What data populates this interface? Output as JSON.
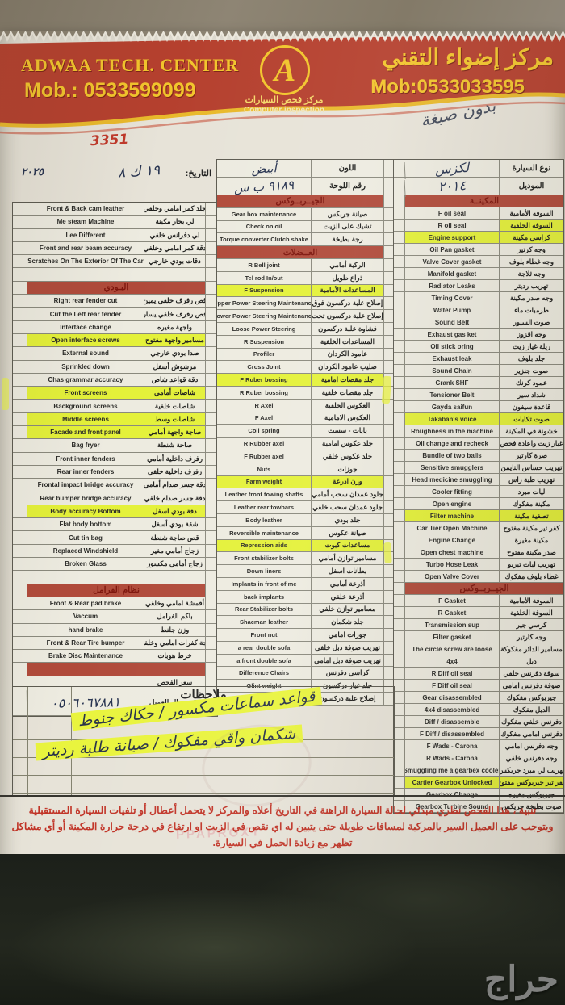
{
  "photo": {
    "watermark": "حراج"
  },
  "header": {
    "center_name_en": "ADWAA TECH. CENTER",
    "mob_left": "Mob.: 0533599099",
    "logo_letter": "A",
    "logo_sub_ar": "مركز فحص السيارات",
    "logo_sub_en": "Computer inspection",
    "center_name_ar": "مركز إضواء التقني",
    "mob_right": "Mob:0533033595",
    "serial_hand": "3351",
    "note_hand": "بدون صبغة"
  },
  "info": {
    "date_label": "التاريخ:",
    "date_hand": "١٩ ك ٨",
    "year_hand": "٢٠٢٥"
  },
  "stamp_bleed": "PPAPROXY",
  "columns": {
    "left": [
      {
        "en": "Front & Back cam leather",
        "ar": "جلد كمر امامي وخلفي"
      },
      {
        "en": "Me steam Machine",
        "ar": "لي بخار مكينة"
      },
      {
        "en": "Lee Different",
        "ar": "لي دفرانس خلفي"
      },
      {
        "en": "Front and rear beam accuracy",
        "ar": "دقة كمر امامي وخلفي"
      },
      {
        "en": "Scratches On The Exterior Of The Car",
        "ar": "دقات بودي خارجي"
      },
      {
        "type": "empty"
      },
      {
        "type": "section",
        "ar": "البـودي"
      },
      {
        "en": "Right rear fender cut",
        "ar": "قص رفرف خلفي يمين"
      },
      {
        "en": "Cut the Left rear fender",
        "ar": "قص رفرف خلفي يسار"
      },
      {
        "en": "Interface change",
        "ar": "واجهة مغيره"
      },
      {
        "en": "Open interface screws",
        "ar": "مسامير واجهة مفتوح",
        "hl": true
      },
      {
        "en": "External sound",
        "ar": "صدا بودي خارجي"
      },
      {
        "en": "Sprinkled down",
        "ar": "مرشوش أسفل"
      },
      {
        "en": "Chas grammar accuracy",
        "ar": "دقة قواعد شاص"
      },
      {
        "en": "Front screens",
        "ar": "شاصات أمامي",
        "hl": true
      },
      {
        "en": "Background screens",
        "ar": "شاصات خلفية"
      },
      {
        "en": "Middle screens",
        "ar": "شاصات وسط",
        "hl": true
      },
      {
        "en": "Facade and front panel",
        "ar": "صاجة واجهة أمامي",
        "hl": true
      },
      {
        "en": "Bag fryer",
        "ar": "صاجة شنطة"
      },
      {
        "en": "Front inner fenders",
        "ar": "رفرف داخلية أمامي"
      },
      {
        "en": "Rear inner fenders",
        "ar": "رفرف داخلية خلفي"
      },
      {
        "en": "Frontal impact bridge accuracy",
        "ar": "دقة جسر صدام أمامي"
      },
      {
        "en": "Rear bumper bridge accuracy",
        "ar": "دقة جسر صدام خلفي"
      },
      {
        "en": "Body accuracy Bottom",
        "ar": "دقة بودي اسفل",
        "hl": true
      },
      {
        "en": "Flat body bottom",
        "ar": "شقة بودي أسفل"
      },
      {
        "en": "Cut tin bag",
        "ar": "قص صاجة شنطة"
      },
      {
        "en": "Replaced Windshield",
        "ar": "زجاج أمامي مغير"
      },
      {
        "en": "Broken Glass",
        "ar": "زجاج أمامي مكسور"
      },
      {
        "type": "empty"
      },
      {
        "type": "section",
        "ar": "نظام الفرامل"
      },
      {
        "en": "Front & Rear pad brake",
        "ar": "أقمشة امامي وخلفي"
      },
      {
        "en": "Vaccum",
        "ar": "باكم الفرامل"
      },
      {
        "en": "hand brake",
        "ar": "وزن جلنط"
      },
      {
        "en": "Front & Rear Tire bumper",
        "ar": "رجة كفرات امامي وخلفي"
      },
      {
        "en": "Brake Disc Maintenance",
        "ar": "خرط هوبات"
      },
      {
        "type": "bar"
      },
      {
        "type": "field",
        "ar": "سعر الفحص"
      },
      {
        "type": "field2",
        "ar": "رقم جوال العميل",
        "hand": "٠٥٠٦٠٦٧٨٨١"
      }
    ],
    "middle": [
      {
        "type": "head",
        "ar": "اللون",
        "hand": "أبيض"
      },
      {
        "type": "head",
        "ar": "رقم اللوحة",
        "hand": "٩١٨٩ ب س"
      },
      {
        "type": "section",
        "ar": "الجيــربــوكس"
      },
      {
        "en": "Gear box maintenance",
        "ar": "صيانة جربكس"
      },
      {
        "en": "Check on oil",
        "ar": "تشيك على الزيت"
      },
      {
        "en": "Torque converter Clutch shake",
        "ar": "رجة بطيخة"
      },
      {
        "type": "section",
        "ar": "العــضلات"
      },
      {
        "en": "R Bell joint",
        "ar": "الركبة أمامي"
      },
      {
        "en": "Tel rod In/out",
        "ar": "ذراع طويل"
      },
      {
        "en": "F Suspension",
        "ar": "المساعدات الأمامية",
        "hl": true
      },
      {
        "en": "Upper Power Steering Maintenance",
        "ar": "إصلاح علبة دركسون فوق"
      },
      {
        "en": "Lower Power Steering Maintenance",
        "ar": "إصلاح علبة دركسون تحت"
      },
      {
        "en": "Loose Power Steering",
        "ar": "فشاوة علبة دركسون"
      },
      {
        "en": "R Suspension",
        "ar": "المساعدات الخلفية"
      },
      {
        "en": "Profiler",
        "ar": "عامود الكردان"
      },
      {
        "en": "Cross Joint",
        "ar": "صليب عامود الكردان"
      },
      {
        "en": "F Ruber bossing",
        "ar": "جلد مقصات امامية",
        "hl": true
      },
      {
        "en": "R Ruber bossing",
        "ar": "جلد مقصات خلفية"
      },
      {
        "en": "R Axel",
        "ar": "العكوس الخلفية"
      },
      {
        "en": "F Axel",
        "ar": "العكوس الامامية"
      },
      {
        "en": "Coil spring",
        "ar": "يايات - سست"
      },
      {
        "en": "R Rubber axel",
        "ar": "جلد عكوس امامية"
      },
      {
        "en": "F Rubber axel",
        "ar": "جلد عكوس خلفي"
      },
      {
        "en": "Nuts",
        "ar": "جوزات"
      },
      {
        "en": "Farm weight",
        "ar": "وزن اذرعة",
        "hl": true
      },
      {
        "en": "Leather front towing shafts",
        "ar": "جلود عمدان سحب أمامي"
      },
      {
        "en": "Leather rear towbars",
        "ar": "جلود عمدان سحب خلفي"
      },
      {
        "en": "Body leather",
        "ar": "جلد بودي"
      },
      {
        "en": "Reversible maintenance",
        "ar": "صيانة عكوس"
      },
      {
        "en": "Repression aids",
        "ar": "مساعدات كبوت",
        "hl": true
      },
      {
        "en": "Front stabilizer bolts",
        "ar": "مسامير توازن أمامي"
      },
      {
        "en": "Down liners",
        "ar": "بطانات اسفل"
      },
      {
        "en": "Implants in front of me",
        "ar": "أذرعة أمامي"
      },
      {
        "en": "back implants",
        "ar": "أذرعة خلفي"
      },
      {
        "en": "Rear Stabilizer bolts",
        "ar": "مسامير توازن خلفي"
      },
      {
        "en": "Shacman leather",
        "ar": "جلد شكمان"
      },
      {
        "en": "Front nut",
        "ar": "جوزات امامي"
      },
      {
        "en": "a rear double sofa",
        "ar": "تهريب صوفة دبل خلفي"
      },
      {
        "en": "a front double sofa",
        "ar": "تهريب صوفة دبل امامي"
      },
      {
        "en": "Difference Chairs",
        "ar": "كراسي دفرنس"
      },
      {
        "en": "Glint weight",
        "ar": "جلد غبار دركسون"
      },
      {
        "en": "Steering wheel repair",
        "ar": "إصلاح علبة دركسون"
      }
    ],
    "right": [
      {
        "type": "head",
        "ar": "نوع السيارة",
        "hand": "لكزس"
      },
      {
        "type": "head",
        "ar": "الموديل",
        "hand": "٢٠١٤"
      },
      {
        "type": "section",
        "ar": "المكينــة"
      },
      {
        "en": "F oil seal",
        "ar": "السوفه الأمامية"
      },
      {
        "en": "R oil seal",
        "ar": "السوفه الخلفية",
        "hl_ar": true
      },
      {
        "en": "Engine support",
        "ar": "كراسي مكينة",
        "hl": true
      },
      {
        "en": "Oil Pan gasket",
        "ar": "وجه كرتير"
      },
      {
        "en": "Valve Cover gasket",
        "ar": "وجه غطاء بلوف"
      },
      {
        "en": "Manifold gasket",
        "ar": "وجه ثلاجة"
      },
      {
        "en": "Radiator Leaks",
        "ar": "تهريب رديتر"
      },
      {
        "en": "Timing Cover",
        "ar": "وجه صدر مكينة"
      },
      {
        "en": "Water Pump",
        "ar": "طرمبات ماء"
      },
      {
        "en": "Sound Belt",
        "ar": "صوت السيور"
      },
      {
        "en": "Exhaust gas ket",
        "ar": "وجه اقزوز"
      },
      {
        "en": "Oil stick oring",
        "ar": "ريلة غيار زيت"
      },
      {
        "en": "Exhaust leak",
        "ar": "جلد بلوف"
      },
      {
        "en": "Sound Chain",
        "ar": "صوت جنزير"
      },
      {
        "en": "Crank SHF",
        "ar": "عمود كرنك"
      },
      {
        "en": "Tensioner Belt",
        "ar": "شداد سير"
      },
      {
        "en": "Gayda saifun",
        "ar": "قاعدة سيفون"
      },
      {
        "en": "Takaban's voice",
        "ar": "صوت تكابات",
        "hl": true
      },
      {
        "en": "Roughness in the machine",
        "ar": "خشونة في المكينة"
      },
      {
        "en": "Oil change and recheck",
        "ar": "غيار زيت واعادة فحص"
      },
      {
        "en": "Bundle of two balls",
        "ar": "صرة كارتير"
      },
      {
        "en": "Sensitive smugglers",
        "ar": "تهريب حساس التايمن"
      },
      {
        "en": "Head medicine smuggling",
        "ar": "تهريب طبة راس"
      },
      {
        "en": "Cooler fitting",
        "ar": "ليات مبرد"
      },
      {
        "en": "Open engine",
        "ar": "مكينة مفكوك"
      },
      {
        "en": "Filter machine",
        "ar": "تصفية مكينة",
        "hl": true
      },
      {
        "en": "Car Tier Open Machine",
        "ar": "كفر تير مكينة مفتوح"
      },
      {
        "en": "Engine Change",
        "ar": "مكينة مغيرة"
      },
      {
        "en": "Open chest machine",
        "ar": "صدر مكينة مفتوح"
      },
      {
        "en": "Turbo Hose Leak",
        "ar": "تهريب ليات تيربو"
      },
      {
        "en": "Open Valve Cover",
        "ar": "غطاء بلوف مفكوك"
      },
      {
        "type": "section",
        "ar": "الجيــربــوكس"
      },
      {
        "en": "F Gasket",
        "ar": "السوفة الأمامية"
      },
      {
        "en": "R Gasket",
        "ar": "السوفة الخلفية"
      },
      {
        "en": "Transmission sup",
        "ar": "كرسي جير"
      },
      {
        "en": "Filter gasket",
        "ar": "وجه كارتير"
      },
      {
        "en": "The circle screw are loose",
        "ar": "مسامير الدائر مفكوكة"
      },
      {
        "en": "4x4",
        "ar": "دبل"
      },
      {
        "en": "R Diff oil seal",
        "ar": "سوفة دفرنس خلفي"
      },
      {
        "en": "F Diff oil seal",
        "ar": "صوفة دفرنس امامي"
      },
      {
        "en": "Gear disassembled",
        "ar": "جيربوكس مفكوك"
      },
      {
        "en": "4x4 disassembled",
        "ar": "الدبل مفكوك"
      },
      {
        "en": "Diff / disassemble",
        "ar": "دفرنس خلفي مفكوك"
      },
      {
        "en": "F Diff / disassembled",
        "ar": "دفرنس امامي مفكوك"
      },
      {
        "en": "F Wads - Carona",
        "ar": "وجه دفرنس امامي"
      },
      {
        "en": "R Wads - Carona",
        "ar": "وجه دفرنس خلفي"
      },
      {
        "en": "Smuggling me a gearbex cooler",
        "ar": "تهريب لي مبرد جريكس"
      },
      {
        "en": "Cartier Gearbox Unlocked",
        "ar": "كفر تير جيربوكس مفتوح",
        "hl": true
      },
      {
        "en": "Gearbox Change",
        "ar": "جيربوكس مغيره"
      },
      {
        "en": "Gearbox Turbine Sound",
        "ar": "صوت بطيخة جريكس"
      }
    ]
  },
  "notes": {
    "title": "ملاحظات",
    "line1": "قواعد سماعات مكسور / حكاك جنوط",
    "line2": "شكمان واقي مفكوك / صيانة طلبة رديتر"
  },
  "footer": {
    "text": "تنبية ، هذا الفحص نظري مبدئي لحالة السيارة الراهنة في التاريخ أعلاه والمركز لا يتحمل أعطال أو تلفيات السيارة المستقبلية ويتوجب على العميل السير بالمركبة لمسافات طويلة حتى يتبين له اي نقص في الزيت او ارتفاع في درجة حرارة المكينة أو أي مشاكل تظهر مع زيادة الحمل في السيارة."
  },
  "colors": {
    "band_red": "#b5402e",
    "band_gold": "#f2c52c",
    "section_red": "#b04a3a",
    "highlight": "#e4f139",
    "footer_red": "#c13427",
    "paper": "#e7e3d8"
  }
}
